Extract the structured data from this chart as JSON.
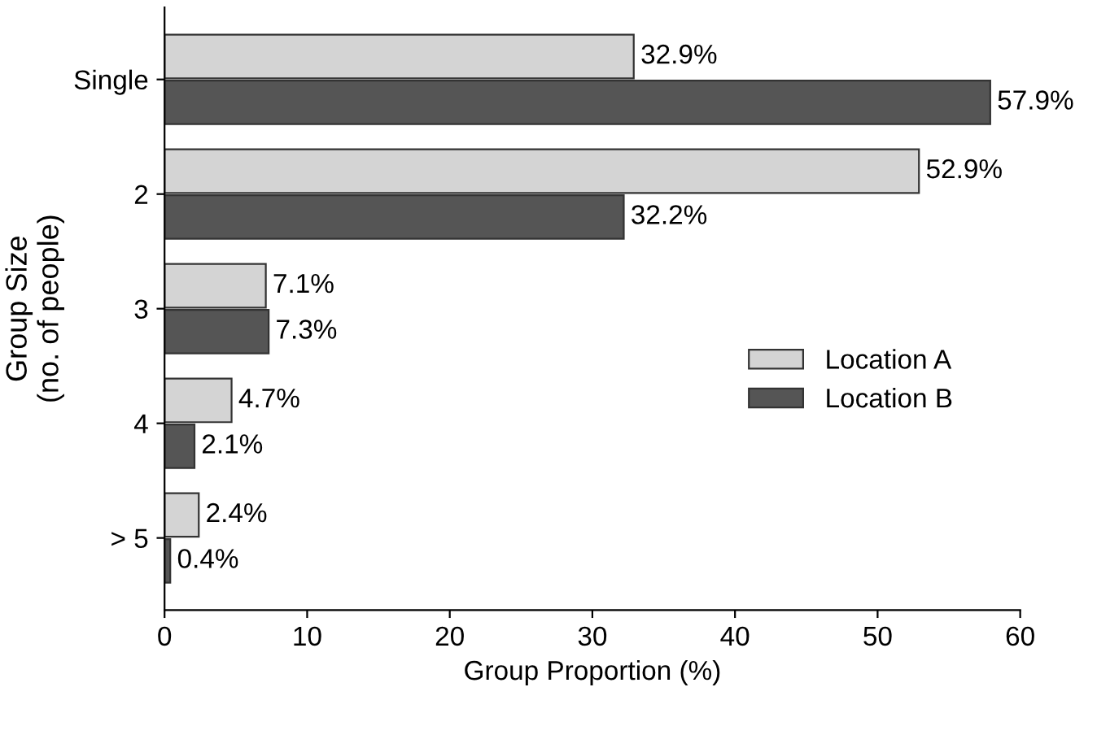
{
  "chart_data": {
    "type": "bar",
    "orientation": "horizontal",
    "xlabel": "Group Proportion (%)",
    "ylabel": "Group Size\n(no. of people)",
    "categories": [
      "Single",
      "2",
      "3",
      "4",
      "> 5"
    ],
    "series": [
      {
        "name": "Location A",
        "color": "#d4d4d4",
        "values": [
          32.9,
          52.9,
          7.1,
          4.7,
          2.4
        ],
        "value_labels": [
          "32.9%",
          "52.9%",
          "7.1%",
          "4.7%",
          "2.4%"
        ]
      },
      {
        "name": "Location B",
        "color": "#555555",
        "values": [
          57.9,
          32.2,
          7.3,
          2.1,
          0.4
        ],
        "value_labels": [
          "57.9%",
          "32.2%",
          "7.3%",
          "2.1%",
          "0.4%"
        ]
      }
    ],
    "xlim": [
      0,
      60
    ],
    "xticks": [
      0,
      10,
      20,
      30,
      40,
      50,
      60
    ],
    "grid": false,
    "legend": "right"
  }
}
